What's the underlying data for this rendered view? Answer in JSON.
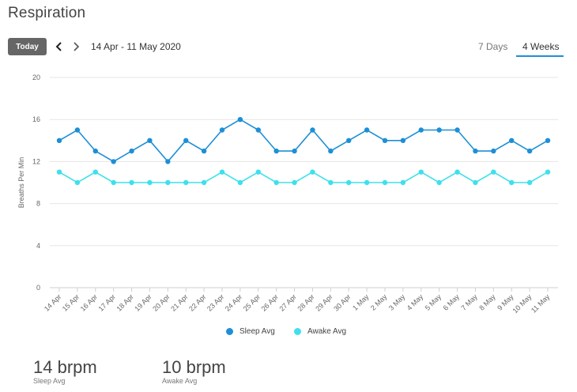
{
  "header": {
    "title": "Respiration"
  },
  "toolbar": {
    "today_label": "Today",
    "date_range": "14 Apr - 11 May 2020",
    "tabs": [
      {
        "label": "7 Days",
        "active": false
      },
      {
        "label": "4 Weeks",
        "active": true
      }
    ],
    "accent_color": "#1f8fd6"
  },
  "chart_data": {
    "type": "line",
    "ylabel": "Breaths Per Min",
    "ylim": [
      0,
      20
    ],
    "yticks": [
      0,
      4,
      8,
      12,
      16,
      20
    ],
    "grid": true,
    "legend_position": "bottom-center",
    "categories": [
      "14 Apr",
      "15 Apr",
      "16 Apr",
      "17 Apr",
      "18 Apr",
      "19 Apr",
      "20 Apr",
      "21 Apr",
      "22 Apr",
      "23 Apr",
      "24 Apr",
      "25 Apr",
      "26 Apr",
      "27 Apr",
      "28 Apr",
      "29 Apr",
      "30 Apr",
      "1 May",
      "2 May",
      "3 May",
      "4 May",
      "5 May",
      "6 May",
      "7 May",
      "8 May",
      "9 May",
      "10 May",
      "11 May"
    ],
    "series": [
      {
        "name": "Sleep Avg",
        "color": "#1d8fd6",
        "values": [
          14,
          15,
          13,
          12,
          13,
          14,
          12,
          14,
          13,
          15,
          16,
          15,
          13,
          13,
          15,
          13,
          14,
          15,
          14,
          14,
          15,
          15,
          15,
          13,
          13,
          14,
          13,
          14
        ]
      },
      {
        "name": "Awake Avg",
        "color": "#3ee0ec",
        "values": [
          11,
          10,
          11,
          10,
          10,
          10,
          10,
          10,
          10,
          11,
          10,
          11,
          10,
          10,
          11,
          10,
          10,
          10,
          10,
          10,
          11,
          10,
          11,
          10,
          11,
          10,
          10,
          11
        ]
      }
    ]
  },
  "stats": [
    {
      "value": "14 brpm",
      "label": "Sleep Avg"
    },
    {
      "value": "10 brpm",
      "label": "Awake Avg"
    }
  ]
}
